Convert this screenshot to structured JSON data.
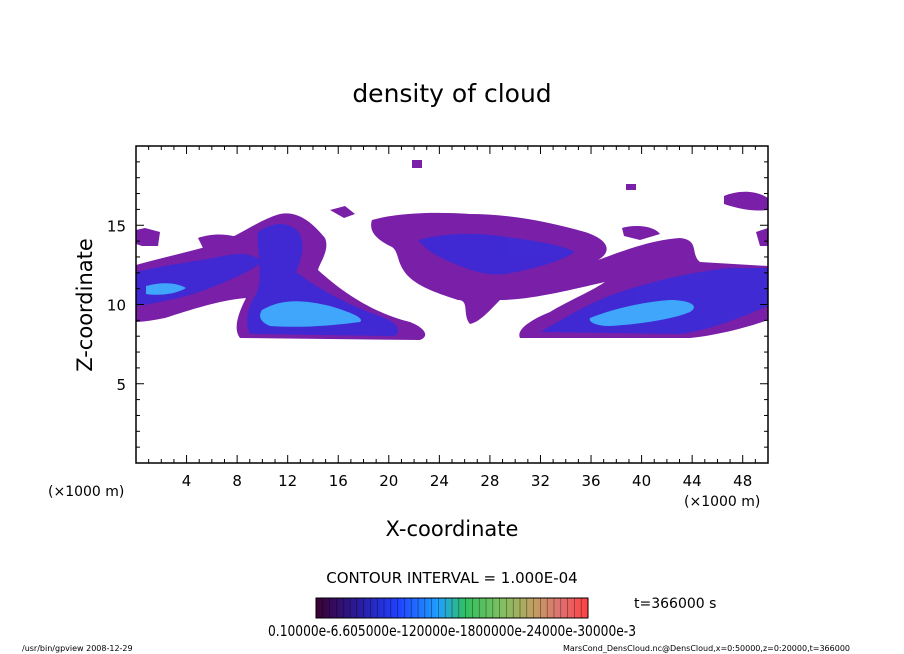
{
  "chart_data": {
    "type": "heatmap",
    "title": "density of cloud",
    "xlabel": "X-coordinate",
    "ylabel": "Z-coordinate",
    "x_unit_left": "(×1000 m)",
    "x_unit_right": "(×1000 m)",
    "xlim": [
      0,
      50
    ],
    "ylim": [
      0,
      20
    ],
    "xticks": [
      4,
      8,
      12,
      16,
      20,
      24,
      28,
      32,
      36,
      40,
      44,
      48
    ],
    "yticks": [
      5,
      10,
      15
    ],
    "contour_interval_text": "CONTOUR INTERVAL = 1.000E-04",
    "time_label": "t=366000 s",
    "colorbar_labels_text": "0.10000e-6.605000e-120000e-1800000e-24000e-30000e-3",
    "colors": {
      "low": "#7a1fa8",
      "mid": "#3a2bd8",
      "high": "#3fb4ff",
      "colorbar": [
        "#3b0030",
        "#2a1a9a",
        "#2040ff",
        "#20a0ff",
        "#30c060",
        "#80c060",
        "#c0a060",
        "#e07070",
        "#ff4040"
      ]
    },
    "footer_left": "/usr/bin/gpview   2008-12-29",
    "footer_right": "MarsCond_DensCloud.nc@DensCloud,x=0:50000,z=0:20000,t=366000"
  }
}
